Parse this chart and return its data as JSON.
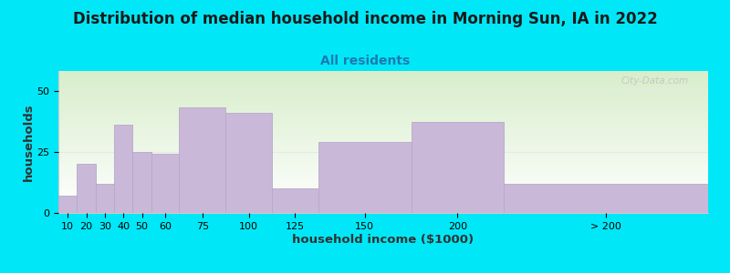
{
  "title": "Distribution of median household income in Morning Sun, IA in 2022",
  "subtitle": "All residents",
  "xlabel": "household income ($1000)",
  "ylabel": "households",
  "background_outer": "#00e8f8",
  "bar_color": "#c9b8d8",
  "bar_edge_color": "#b8a8cc",
  "bar_labels": [
    "10",
    "20",
    "30",
    "40",
    "50",
    "60",
    "75",
    "100",
    "125",
    "150",
    "200",
    "> 200"
  ],
  "bar_values": [
    7,
    20,
    12,
    36,
    25,
    24,
    43,
    41,
    10,
    29,
    37,
    12
  ],
  "bar_lefts": [
    10,
    20,
    30,
    40,
    50,
    60,
    75,
    100,
    125,
    150,
    200,
    250
  ],
  "bar_widths": [
    10,
    10,
    10,
    10,
    10,
    15,
    25,
    25,
    25,
    50,
    50,
    110
  ],
  "tick_labels": [
    "10",
    "20",
    "30",
    "40",
    "50",
    "60",
    "75",
    "100",
    "125",
    "150",
    "200",
    "> 200"
  ],
  "xlim": [
    10,
    360
  ],
  "ylim": [
    0,
    58
  ],
  "yticks": [
    0,
    25,
    50
  ],
  "watermark": "City-Data.com",
  "title_fontsize": 12,
  "subtitle_fontsize": 10,
  "axis_label_fontsize": 9.5,
  "tick_fontsize": 8
}
